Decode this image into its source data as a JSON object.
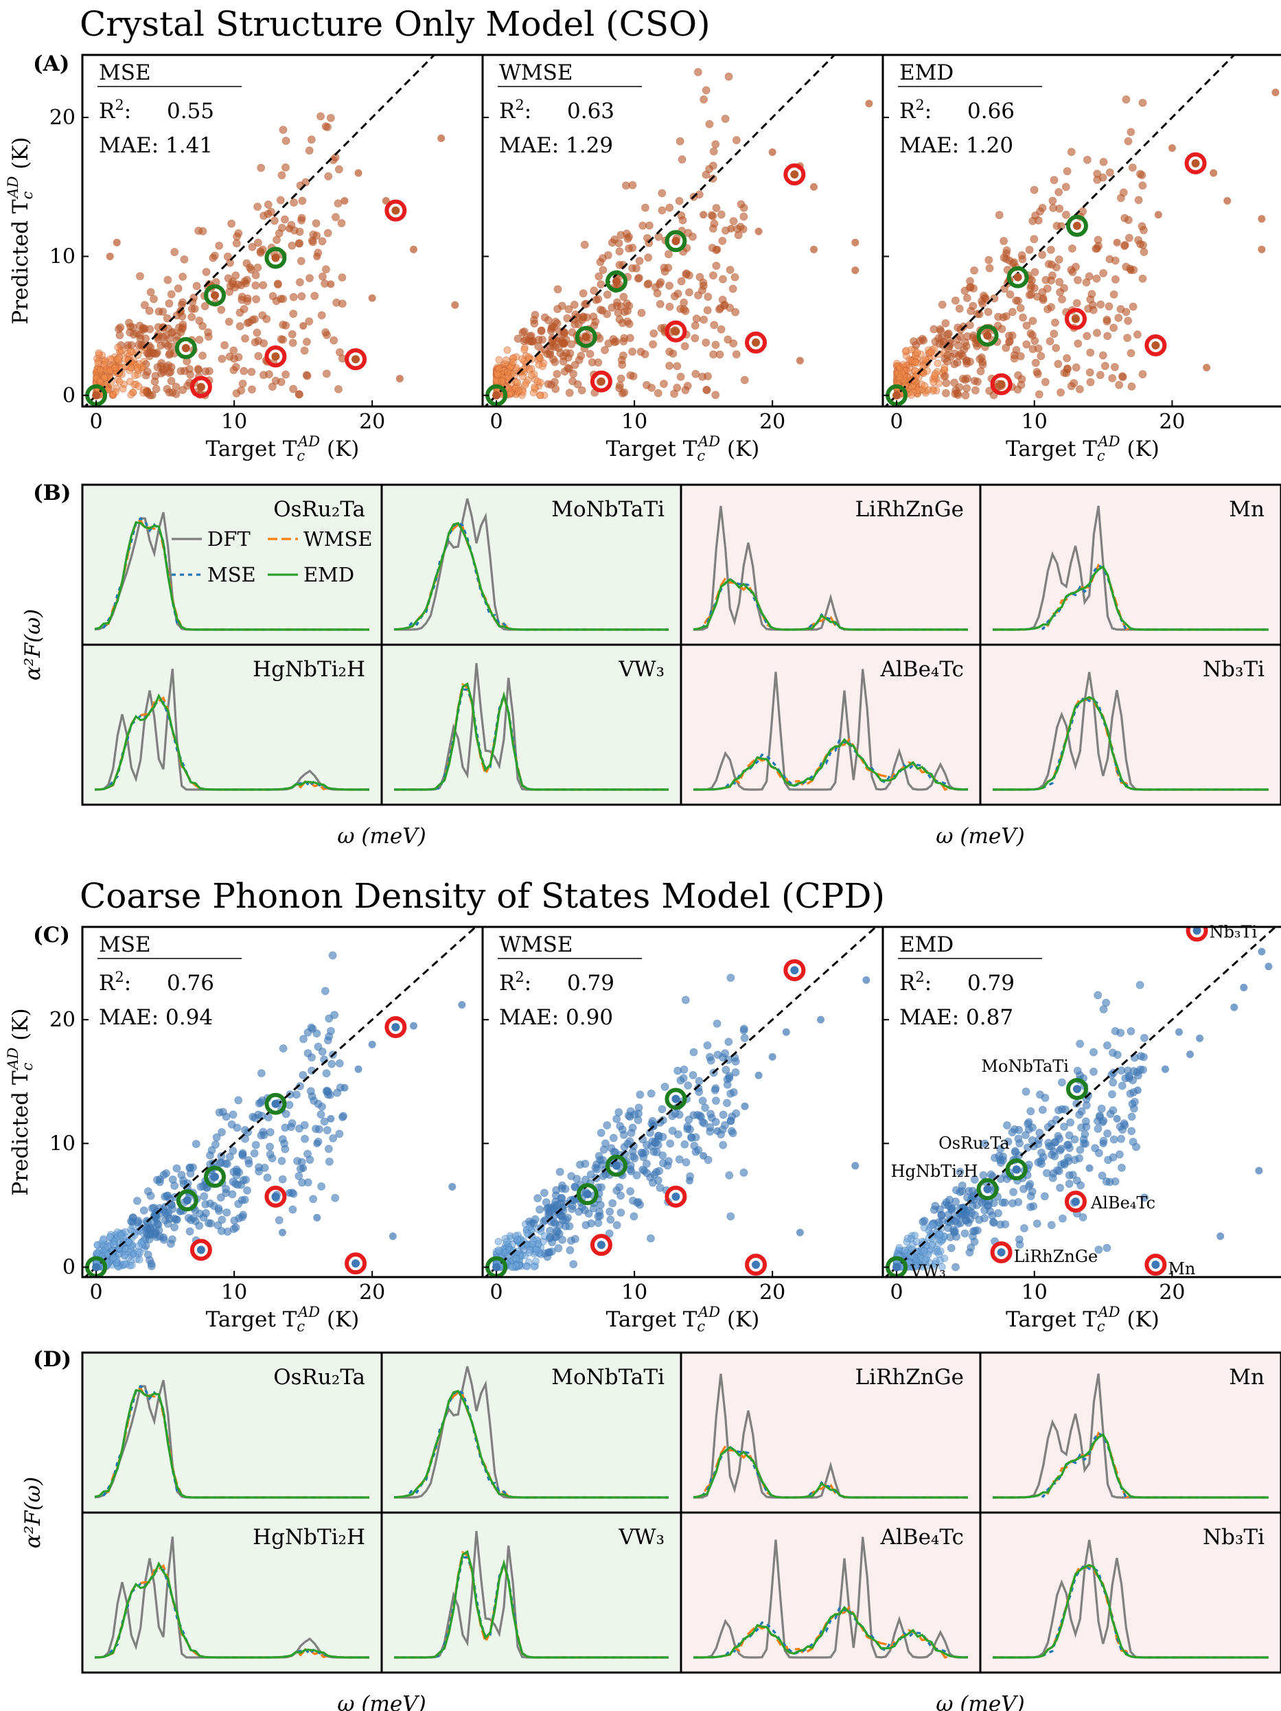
{
  "figure": {
    "section_titles": [
      "Crystal Structure Only Model (CSO)",
      "Coarse Phonon Density of States Model (CPD)"
    ],
    "panel_letters": [
      "(A)",
      "(B)",
      "(C)",
      "(D)"
    ],
    "colors": {
      "cso_points": "#b8572a",
      "cpd_points": "#3f78b5",
      "highlight_good": "#1e7d1e",
      "highlight_bad": "#e81c1c",
      "dft": "#808080",
      "wmse": "#ff7f0e",
      "mse": "#1f77b4",
      "emd": "#2ca02c",
      "bg_good": "#eef5ec",
      "bg_bad": "#fcefef"
    }
  },
  "scatter_axes": {
    "xlabel": "Target T_c^AD (K)",
    "ylabel": "Predicted T_c^AD (K)",
    "xticks": [
      0,
      10,
      20
    ],
    "yticks_cso": [
      0,
      10,
      20
    ],
    "yticks_cpd": [
      0,
      10,
      20
    ]
  },
  "spectra_axes": {
    "xlabel": "ω (meV)",
    "ylabel": "α²F(ω)",
    "legend": [
      "DFT",
      "WMSE",
      "MSE",
      "EMD"
    ]
  },
  "chart_data": [
    {
      "panel": "A",
      "type": "scatter",
      "title": "Crystal Structure Only Model (CSO)",
      "xlabel": "Target T_c^AD (K)",
      "ylabel": "Predicted T_c^AD (K)",
      "xlim": [
        -1,
        28
      ],
      "ylim": [
        -0.8,
        24.5
      ],
      "subplots": [
        {
          "loss": "MSE",
          "r2": "0.55",
          "mae": "1.41",
          "good": [
            [
              0,
              0
            ],
            [
              6.5,
              3.4
            ],
            [
              8.6,
              7.2
            ],
            [
              13,
              9.9
            ]
          ],
          "bad": [
            [
              7.6,
              0.6
            ],
            [
              13,
              2.8
            ],
            [
              18.8,
              2.6
            ],
            [
              21.7,
              13.3
            ]
          ],
          "outliers": [
            [
              19,
              16
            ],
            [
              25,
              18.5
            ],
            [
              20,
              7
            ],
            [
              23,
              10.5
            ],
            [
              26,
              6.5
            ],
            [
              22,
              1.2
            ],
            [
              1.5,
              11
            ],
            [
              1,
              10
            ],
            [
              18,
              14
            ],
            [
              14,
              12
            ],
            [
              21,
              14
            ],
            [
              16,
              10
            ],
            [
              17,
              8
            ],
            [
              15,
              5
            ]
          ]
        },
        {
          "loss": "WMSE",
          "r2": "0.63",
          "mae": "1.29",
          "good": [
            [
              0,
              0
            ],
            [
              6.5,
              4.2
            ],
            [
              8.7,
              8.2
            ],
            [
              13,
              11.1
            ]
          ],
          "bad": [
            [
              7.6,
              1
            ],
            [
              13,
              4.6
            ],
            [
              18.8,
              3.8
            ],
            [
              21.6,
              15.9
            ]
          ],
          "outliers": [
            [
              27,
              21
            ],
            [
              20,
              17.5
            ],
            [
              23,
              15
            ],
            [
              22,
              16.5
            ],
            [
              26,
              11
            ],
            [
              26,
              9
            ],
            [
              23,
              10.5
            ],
            [
              22,
              2.5
            ],
            [
              17,
              12
            ],
            [
              15,
              13
            ],
            [
              19,
              11.8
            ],
            [
              16,
              10.5
            ]
          ]
        },
        {
          "loss": "EMD",
          "r2": "0.66",
          "mae": "1.20",
          "good": [
            [
              0,
              0
            ],
            [
              6.6,
              4.3
            ],
            [
              8.8,
              8.5
            ],
            [
              13.1,
              12.2
            ]
          ],
          "bad": [
            [
              7.6,
              0.8
            ],
            [
              13,
              5.5
            ],
            [
              18.8,
              3.6
            ],
            [
              21.7,
              16.7
            ]
          ],
          "outliers": [
            [
              27.5,
              21.8
            ],
            [
              20,
              17.8
            ],
            [
              23,
              16
            ],
            [
              24,
              14
            ],
            [
              26.5,
              10.5
            ],
            [
              22.5,
              2
            ],
            [
              26.5,
              12.7
            ],
            [
              19,
              13
            ],
            [
              16,
              11
            ],
            [
              17,
              9
            ]
          ]
        }
      ]
    },
    {
      "panel": "B",
      "type": "line",
      "xlabel": "ω (meV)",
      "ylabel": "α²F(ω)",
      "series_names": [
        "DFT",
        "WMSE",
        "MSE",
        "EMD"
      ],
      "subplots": [
        {
          "label": "OsRu₂Ta",
          "category": "good"
        },
        {
          "label": "MoNbTaTi",
          "category": "good"
        },
        {
          "label": "LiRhZnGe",
          "category": "bad"
        },
        {
          "label": "Mn",
          "category": "bad"
        },
        {
          "label": "HgNbTi₂H",
          "category": "good"
        },
        {
          "label": "VW₃",
          "category": "good"
        },
        {
          "label": "AlBe₄Tc",
          "category": "bad"
        },
        {
          "label": "Nb₃Ti",
          "category": "bad"
        }
      ]
    },
    {
      "panel": "C",
      "type": "scatter",
      "title": "Coarse Phonon Density of States Model (CPD)",
      "xlabel": "Target T_c^AD (K)",
      "ylabel": "Predicted T_c^AD (K)",
      "xlim": [
        -1,
        28
      ],
      "ylim": [
        -0.8,
        27.5
      ],
      "subplots": [
        {
          "loss": "MSE",
          "r2": "0.76",
          "mae": "0.94",
          "good": [
            [
              0,
              0
            ],
            [
              6.6,
              5.4
            ],
            [
              8.6,
              7.3
            ],
            [
              13,
              13.2
            ]
          ],
          "bad": [
            [
              7.6,
              1.4
            ],
            [
              13,
              5.7
            ],
            [
              18.8,
              0.3
            ],
            [
              21.7,
              19.4
            ]
          ],
          "outliers": [
            [
              26.5,
              21.2
            ],
            [
              23,
              19.5
            ],
            [
              25.8,
              6.5
            ],
            [
              21.5,
              2.5
            ],
            [
              20,
              18
            ],
            [
              19,
              16
            ],
            [
              18,
              14.5
            ],
            [
              17,
              12
            ],
            [
              16,
              10
            ],
            [
              15,
              8
            ],
            [
              14,
              6
            ],
            [
              13.5,
              2.8
            ],
            [
              16,
              4
            ]
          ]
        },
        {
          "loss": "WMSE",
          "r2": "0.79",
          "mae": "0.90",
          "good": [
            [
              0,
              0
            ],
            [
              6.6,
              5.9
            ],
            [
              8.7,
              8.2
            ],
            [
              13,
              13.6
            ]
          ],
          "bad": [
            [
              7.6,
              1.8
            ],
            [
              13,
              5.7
            ],
            [
              18.8,
              0.2
            ],
            [
              21.6,
              24
            ]
          ],
          "outliers": [
            [
              26.8,
              23.2
            ],
            [
              23.5,
              20
            ],
            [
              26,
              8.2
            ],
            [
              22,
              2.8
            ],
            [
              21,
              19
            ],
            [
              20,
              17
            ],
            [
              19,
              15.5
            ],
            [
              18,
              13
            ],
            [
              16,
              11
            ],
            [
              15,
              9
            ],
            [
              14,
              7
            ]
          ]
        },
        {
          "loss": "EMD",
          "r2": "0.79",
          "mae": "0.87",
          "good": [
            [
              0,
              0
            ],
            [
              6.6,
              6.3
            ],
            [
              8.7,
              7.9
            ],
            [
              13.1,
              14.4
            ]
          ],
          "bad": [
            [
              7.6,
              1.2
            ],
            [
              13,
              5.3
            ],
            [
              18.8,
              0.2
            ],
            [
              21.8,
              27.2
            ]
          ],
          "outliers": [
            [
              26.5,
              25.5
            ],
            [
              27,
              24.3
            ],
            [
              25.2,
              22.6
            ],
            [
              24.5,
              21
            ],
            [
              26.3,
              7.8
            ],
            [
              23.5,
              2.5
            ],
            [
              20.5,
              19
            ],
            [
              22,
              18.5
            ],
            [
              21.3,
              17.2
            ],
            [
              19.5,
              16
            ],
            [
              17.5,
              14.3
            ],
            [
              16,
              12
            ],
            [
              15,
              10
            ],
            [
              14,
              8
            ]
          ],
          "annotations": [
            {
              "text": "Nb₃Ti",
              "x": 21.8,
              "y": 27.2
            },
            {
              "text": "MoNbTaTi",
              "x": 13.1,
              "y": 14.4
            },
            {
              "text": "OsRu₂Ta",
              "x": 8.7,
              "y": 7.9
            },
            {
              "text": "HgNbTi₂H",
              "x": 6.6,
              "y": 6.3
            },
            {
              "text": "AlBe₄Tc",
              "x": 13,
              "y": 5.3
            },
            {
              "text": "LiRhZnGe",
              "x": 7.6,
              "y": 1.2
            },
            {
              "text": "Mn",
              "x": 18.8,
              "y": 0.2
            },
            {
              "text": "VW₃",
              "x": 0,
              "y": 0
            }
          ]
        }
      ]
    },
    {
      "panel": "D",
      "type": "line",
      "xlabel": "ω (meV)",
      "ylabel": "α²F(ω)",
      "series_names": [
        "DFT",
        "WMSE",
        "MSE",
        "EMD"
      ],
      "subplots": [
        {
          "label": "OsRu₂Ta",
          "category": "good"
        },
        {
          "label": "MoNbTaTi",
          "category": "good"
        },
        {
          "label": "LiRhZnGe",
          "category": "bad"
        },
        {
          "label": "Mn",
          "category": "bad"
        },
        {
          "label": "HgNbTi₂H",
          "category": "good"
        },
        {
          "label": "VW₃",
          "category": "good"
        },
        {
          "label": "AlBe₄Tc",
          "category": "bad"
        },
        {
          "label": "Nb₃Ti",
          "category": "bad"
        }
      ]
    }
  ]
}
